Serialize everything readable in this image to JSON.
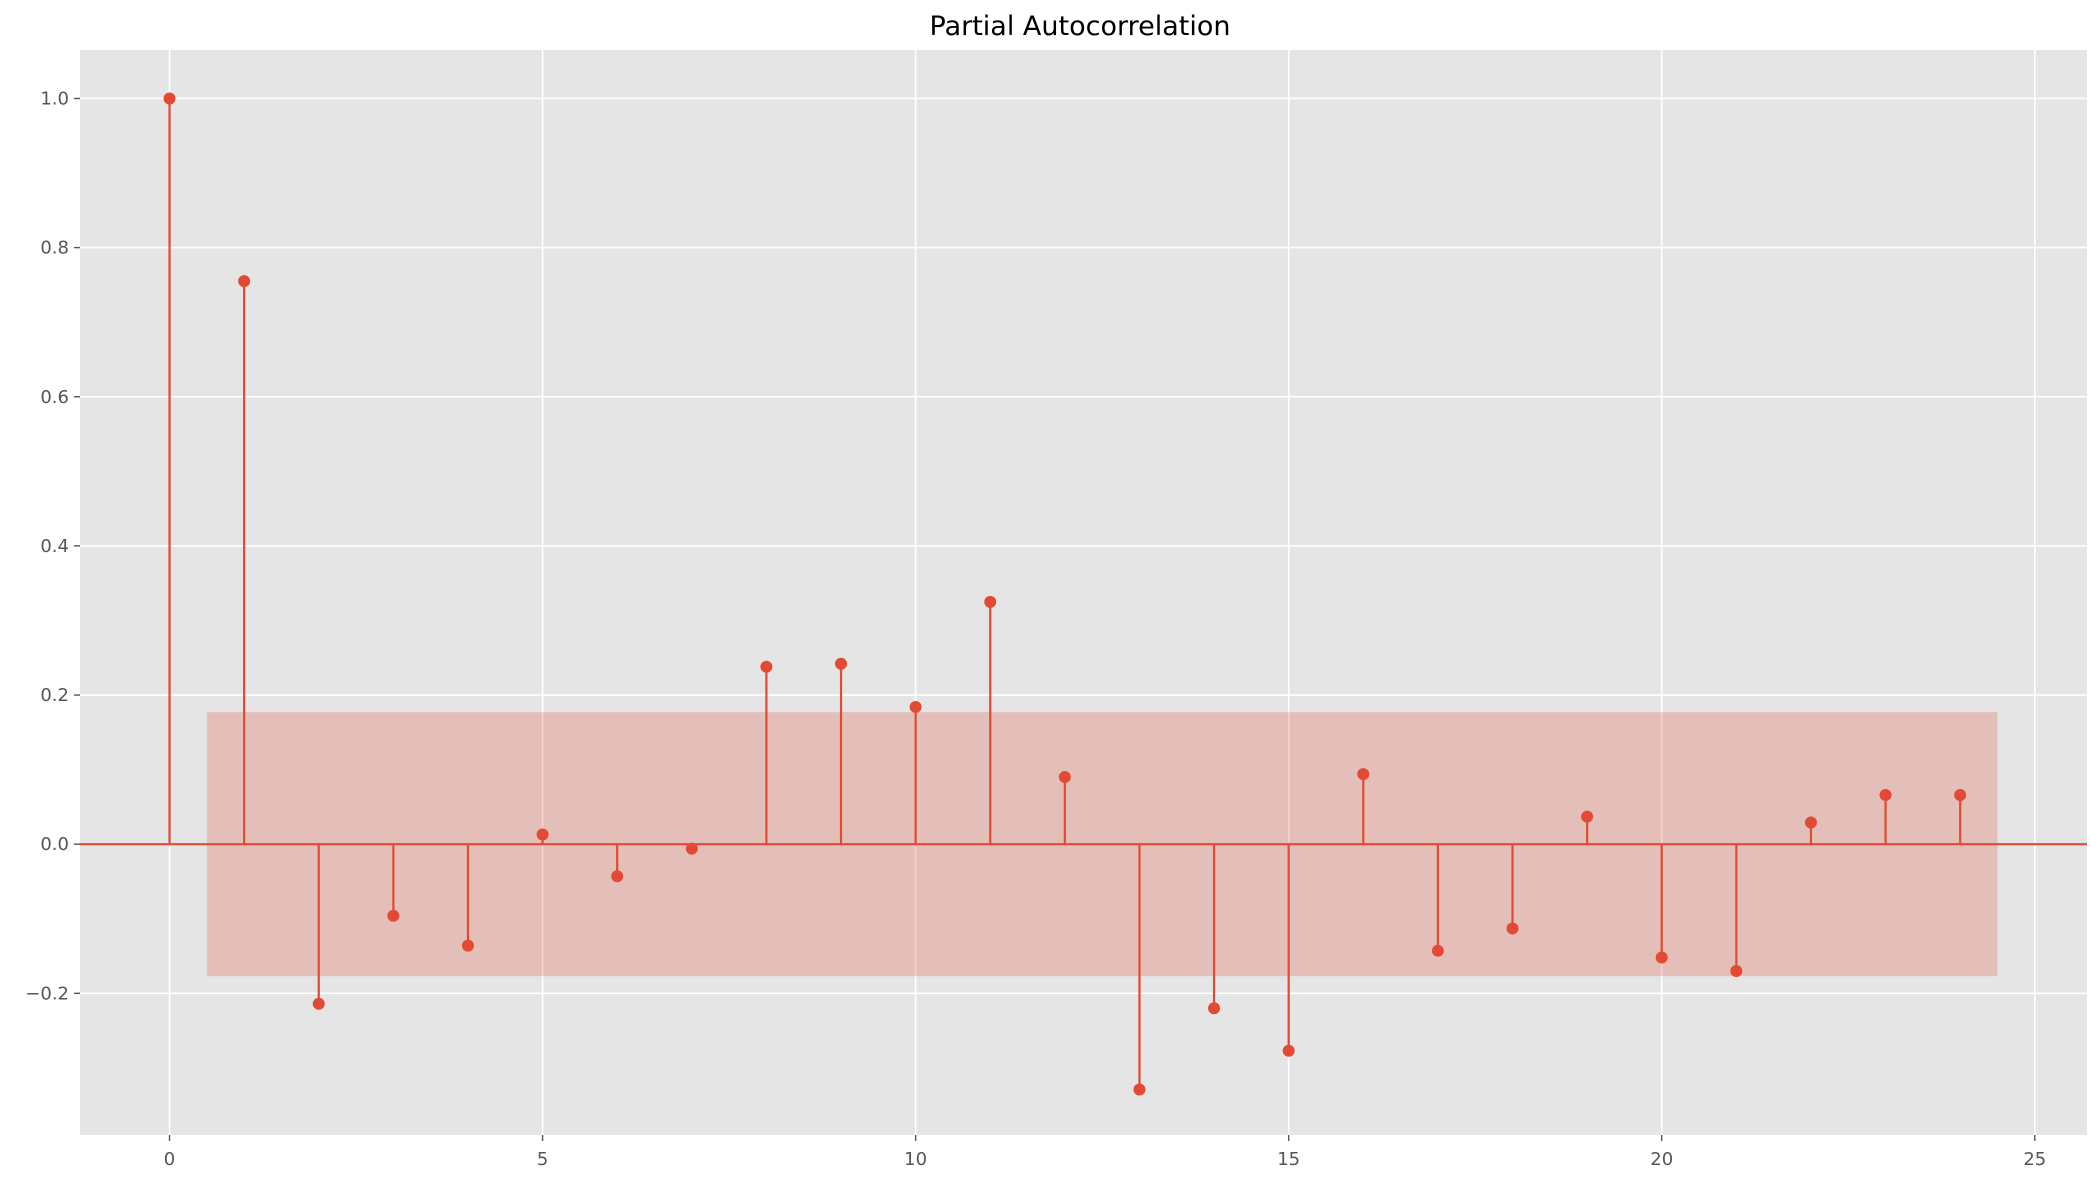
{
  "chart_data": {
    "type": "stem",
    "title": "Partial Autocorrelation",
    "xlabel": "",
    "ylabel": "",
    "xlim": [
      -1.2,
      25.7
    ],
    "ylim": [
      -0.39,
      1.065
    ],
    "x_ticks": [
      0,
      5,
      10,
      15,
      20,
      25
    ],
    "y_ticks": [
      -0.2,
      0.0,
      0.2,
      0.4,
      0.6,
      0.8,
      1.0
    ],
    "y_tick_labels": [
      "−0.2",
      "0.0",
      "0.2",
      "0.4",
      "0.6",
      "0.8",
      "1.0"
    ],
    "grid": true,
    "confidence_band": {
      "x_start": 0.5,
      "x_end": 24.5,
      "lower": -0.177,
      "upper": 0.177
    },
    "lags": [
      0,
      1,
      2,
      3,
      4,
      5,
      6,
      7,
      8,
      9,
      10,
      11,
      12,
      13,
      14,
      15,
      16,
      17,
      18,
      19,
      20,
      21,
      22,
      23,
      24
    ],
    "values": [
      1.0,
      0.755,
      -0.214,
      -0.096,
      -0.136,
      0.013,
      -0.043,
      -0.006,
      0.238,
      0.242,
      0.184,
      0.325,
      0.09,
      -0.329,
      -0.22,
      -0.277,
      0.094,
      -0.143,
      -0.113,
      0.037,
      -0.152,
      -0.17,
      0.029,
      0.066,
      0.066
    ],
    "colors": {
      "stem": "#E24A33",
      "band": "#E24A33",
      "background": "#E5E5E5",
      "grid": "#FFFFFF"
    }
  }
}
